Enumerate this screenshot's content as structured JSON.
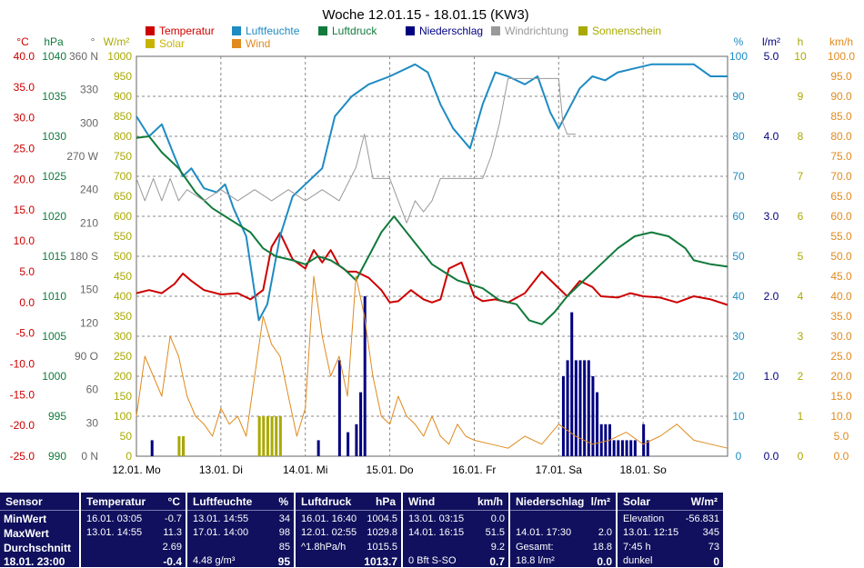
{
  "chart_data": {
    "type": "line",
    "title": "Woche 12.01.15 - 18.01.15 (KW3)",
    "legend": [
      {
        "label": "Temperatur",
        "color": "#cc0000"
      },
      {
        "label": "Luftfeuchte",
        "color": "#1e8bc3"
      },
      {
        "label": "Luftdruck",
        "color": "#117a3c"
      },
      {
        "label": "Niederschlag",
        "color": "#000080"
      },
      {
        "label": "Windrichtung",
        "color": "#999999"
      },
      {
        "label": "Sonnenschein",
        "color": "#a9a900"
      },
      {
        "label": "Solar",
        "color": "#c8b400"
      },
      {
        "label": "Wind",
        "color": "#e08a1e"
      }
    ],
    "x_labels": [
      "12.01. Mo",
      "13.01. Di",
      "14.01. Mi",
      "15.01. Do",
      "16.01. Fr",
      "17.01. Sa",
      "18.01. So"
    ],
    "axes": {
      "temp": {
        "unit": "°C",
        "color": "#cc0000",
        "ticks": [
          "40.0",
          "35.0",
          "30.0",
          "25.0",
          "20.0",
          "15.0",
          "10.0",
          "5.0",
          "0.0",
          "-5.0",
          "-10.0",
          "-15.0",
          "-20.0",
          "-25.0"
        ],
        "ylim": [
          -25,
          40
        ]
      },
      "pressure": {
        "unit": "hPa",
        "color": "#117a3c",
        "ticks": [
          "1040",
          "1035",
          "1030",
          "1025",
          "1020",
          "1015",
          "1010",
          "1005",
          "1000",
          "995",
          "990"
        ],
        "ylim": [
          990,
          1040
        ]
      },
      "direction": {
        "unit": "°",
        "color": "#666666",
        "ticks": [
          "360 N",
          "330",
          "300",
          "270 W",
          "240",
          "210",
          "180 S",
          "150",
          "120",
          "90 O",
          "60",
          "30",
          "0 N"
        ],
        "ylim": [
          0,
          360
        ]
      },
      "solar": {
        "unit": "W/m²",
        "color": "#a9a900",
        "ticks": [
          "1000",
          "950",
          "900",
          "850",
          "800",
          "750",
          "700",
          "650",
          "600",
          "550",
          "500",
          "450",
          "400",
          "350",
          "300",
          "250",
          "200",
          "150",
          "100",
          "50",
          "0"
        ],
        "ylim": [
          0,
          1000
        ]
      },
      "humidity": {
        "unit": "%",
        "color": "#1e8bc3",
        "ticks": [
          "100",
          "90",
          "80",
          "70",
          "60",
          "50",
          "40",
          "30",
          "20",
          "10",
          "0"
        ],
        "ylim": [
          0,
          100
        ]
      },
      "rain": {
        "unit": "l/m²",
        "color": "#000080",
        "ticks": [
          "5.0",
          "4.0",
          "3.0",
          "2.0",
          "1.0",
          "0.0"
        ],
        "ylim": [
          0,
          5
        ]
      },
      "sunhours": {
        "unit": "h",
        "color": "#a9a900",
        "ticks": [
          "10",
          "9",
          "8",
          "7",
          "6",
          "5",
          "4",
          "3",
          "2",
          "1",
          "0"
        ],
        "ylim": [
          0,
          10
        ]
      },
      "wind": {
        "unit": "km/h",
        "color": "#e08a1e",
        "ticks": [
          "100.0",
          "95.0",
          "90.0",
          "85.0",
          "80.0",
          "75.0",
          "70.0",
          "65.0",
          "60.0",
          "55.0",
          "50.0",
          "45.0",
          "40.0",
          "35.0",
          "30.0",
          "25.0",
          "20.0",
          "15.0",
          "10.0",
          "5.0",
          "0.0"
        ],
        "ylim": [
          0,
          100
        ]
      }
    },
    "series": [
      {
        "name": "Temperatur",
        "color": "#cc0000",
        "axis": "temp",
        "x": [
          0,
          0.15,
          0.3,
          0.45,
          0.55,
          0.65,
          0.8,
          1.0,
          1.2,
          1.35,
          1.5,
          1.6,
          1.7,
          1.85,
          2.0,
          2.1,
          2.2,
          2.3,
          2.4,
          2.5,
          2.6,
          2.75,
          2.9,
          3.0,
          3.1,
          3.25,
          3.4,
          3.5,
          3.6,
          3.7,
          3.85,
          4.0,
          4.1,
          4.25,
          4.4,
          4.6,
          4.8,
          4.95,
          5.1,
          5.25,
          5.4,
          5.5,
          5.7,
          5.85,
          6.0,
          6.2,
          6.4,
          6.6,
          6.8,
          7.0
        ],
        "y": [
          1.5,
          2.0,
          1.5,
          3.0,
          4.7,
          3.5,
          2.0,
          1.3,
          1.5,
          0.5,
          2.0,
          9.0,
          11.3,
          7.0,
          5.5,
          8.5,
          6.5,
          8.5,
          6.0,
          5.0,
          5.0,
          4.0,
          2.0,
          0.0,
          0.2,
          2.0,
          0.5,
          0.0,
          0.5,
          5.5,
          6.5,
          1.0,
          0.2,
          0.5,
          0.0,
          1.5,
          5.0,
          3.0,
          1.0,
          3.5,
          2.5,
          1.0,
          0.8,
          1.5,
          1.0,
          0.8,
          0.0,
          1.0,
          0.5,
          -0.4
        ]
      },
      {
        "name": "Luftfeuchte",
        "color": "#1e8bc3",
        "axis": "humidity",
        "x": [
          0,
          0.15,
          0.3,
          0.45,
          0.55,
          0.65,
          0.8,
          0.95,
          1.05,
          1.15,
          1.3,
          1.45,
          1.55,
          1.7,
          1.85,
          2.0,
          2.1,
          2.2,
          2.35,
          2.55,
          2.75,
          3.0,
          3.3,
          3.45,
          3.6,
          3.75,
          3.95,
          4.1,
          4.25,
          4.4,
          4.6,
          4.75,
          4.9,
          5.0,
          5.15,
          5.25,
          5.4,
          5.55,
          5.7,
          5.9,
          6.1,
          6.3,
          6.6,
          6.8,
          7.0
        ],
        "y": [
          85,
          80,
          83,
          75,
          70,
          72,
          67,
          66,
          68,
          62,
          55,
          34,
          38,
          55,
          65,
          68,
          70,
          72,
          85,
          90,
          93,
          95,
          98,
          96,
          88,
          82,
          77,
          88,
          96,
          95,
          93,
          95,
          86,
          82,
          88,
          92,
          95,
          94,
          96,
          97,
          98,
          98,
          98,
          95,
          95
        ]
      },
      {
        "name": "Luftdruck",
        "color": "#117a3c",
        "axis": "pressure",
        "x": [
          0,
          0.15,
          0.3,
          0.5,
          0.7,
          0.9,
          1.05,
          1.2,
          1.35,
          1.5,
          1.65,
          1.85,
          2.0,
          2.15,
          2.3,
          2.45,
          2.6,
          2.75,
          2.9,
          3.05,
          3.2,
          3.35,
          3.5,
          3.65,
          3.8,
          3.95,
          4.1,
          4.3,
          4.5,
          4.65,
          4.8,
          4.95,
          5.1,
          5.3,
          5.5,
          5.7,
          5.9,
          6.1,
          6.3,
          6.5,
          6.6,
          6.8,
          7.0
        ],
        "y": [
          1029.8,
          1030,
          1028,
          1026,
          1023,
          1021,
          1020,
          1019,
          1018,
          1016,
          1015,
          1014.5,
          1014,
          1015,
          1014.5,
          1013.5,
          1012,
          1015,
          1018,
          1020,
          1018,
          1016,
          1014,
          1013,
          1012,
          1011.5,
          1011,
          1009.5,
          1009,
          1007,
          1006.5,
          1008,
          1010,
          1012,
          1014,
          1016,
          1017.5,
          1018,
          1017.5,
          1016,
          1014.5,
          1014,
          1013.7
        ]
      },
      {
        "name": "Windrichtung",
        "color": "#999999",
        "axis": "direction",
        "x": [
          0,
          0.1,
          0.2,
          0.3,
          0.4,
          0.5,
          0.6,
          0.8,
          1.0,
          1.2,
          1.4,
          1.6,
          1.8,
          2.0,
          2.2,
          2.4,
          2.6,
          2.7,
          2.8,
          2.9,
          3.0,
          3.1,
          3.2,
          3.3,
          3.4,
          3.5,
          3.6,
          3.7,
          3.8,
          3.9,
          4.0,
          4.1,
          4.2,
          4.3,
          4.4,
          4.5,
          4.6,
          4.7,
          4.8,
          4.9,
          5.0,
          5.05,
          5.1,
          5.2
        ],
        "y": [
          250,
          230,
          250,
          230,
          250,
          230,
          240,
          230,
          240,
          230,
          240,
          230,
          240,
          230,
          240,
          230,
          260,
          290,
          250,
          250,
          250,
          230,
          210,
          230,
          220,
          230,
          250,
          250,
          250,
          250,
          250,
          250,
          270,
          300,
          340,
          340,
          340,
          340,
          340,
          340,
          340,
          300,
          290,
          290
        ]
      },
      {
        "name": "Wind",
        "color": "#e08a1e",
        "axis": "wind",
        "x": [
          0,
          0.1,
          0.2,
          0.3,
          0.4,
          0.5,
          0.6,
          0.7,
          0.8,
          0.9,
          1.0,
          1.1,
          1.2,
          1.3,
          1.4,
          1.5,
          1.6,
          1.7,
          1.8,
          1.9,
          2.0,
          2.1,
          2.2,
          2.3,
          2.4,
          2.5,
          2.6,
          2.7,
          2.8,
          2.9,
          3.0,
          3.1,
          3.2,
          3.3,
          3.4,
          3.5,
          3.6,
          3.7,
          3.8,
          3.9,
          4.0,
          4.2,
          4.4,
          4.6,
          4.8,
          5.0,
          5.2,
          5.4,
          5.6,
          5.8,
          6.0,
          6.2,
          6.4,
          6.6,
          6.8,
          7.0
        ],
        "y": [
          10,
          25,
          20,
          15,
          30,
          25,
          15,
          10,
          8,
          5,
          12,
          8,
          10,
          5,
          20,
          35,
          28,
          25,
          15,
          5,
          12,
          45,
          30,
          20,
          25,
          15,
          45,
          35,
          20,
          10,
          8,
          15,
          10,
          8,
          5,
          10,
          5,
          3,
          8,
          5,
          4,
          3,
          2,
          5,
          3,
          8,
          5,
          3,
          4,
          6,
          3,
          5,
          8,
          4,
          3,
          2
        ]
      }
    ],
    "bars": [
      {
        "name": "Niederschlag",
        "color": "#000080",
        "axis": "rain",
        "x": [
          0.18,
          0.55,
          2.15,
          2.4,
          2.5,
          2.6,
          2.65,
          2.7,
          5.05,
          5.1,
          5.15,
          5.2,
          5.25,
          5.3,
          5.35,
          5.4,
          5.45,
          5.5,
          5.55,
          5.6,
          5.65,
          5.7,
          5.75,
          5.8,
          5.85,
          5.9,
          6.0,
          6.05
        ],
        "y": [
          0.2,
          0.2,
          0.2,
          1.2,
          0.3,
          0.4,
          0.8,
          2.0,
          1.0,
          1.2,
          1.8,
          1.2,
          1.2,
          1.2,
          1.2,
          1.0,
          0.8,
          0.4,
          0.4,
          0.4,
          0.2,
          0.2,
          0.2,
          0.2,
          0.2,
          0.2,
          0.4,
          0.2
        ]
      },
      {
        "name": "Sonnenschein",
        "color": "#a9a900",
        "axis": "sunhours",
        "x": [
          0.5,
          0.55,
          1.45,
          1.5,
          1.55,
          1.6,
          1.65,
          1.7
        ],
        "y": [
          0.5,
          0.5,
          1.0,
          1.0,
          1.0,
          1.0,
          1.0,
          1.0
        ]
      }
    ]
  },
  "table": {
    "sensor_block": {
      "header": "Sensor",
      "rows": [
        "MinWert",
        "MaxWert",
        "Durchschnitt"
      ],
      "footer": "18.01. 23:00"
    },
    "temperatur": {
      "header": "Temperatur",
      "unit": "°C",
      "rows": [
        [
          "16.01. 03:05",
          "-0.7"
        ],
        [
          "13.01. 14:55",
          "11.3"
        ],
        [
          "",
          "2.69"
        ]
      ],
      "footer": [
        "",
        "-0.4"
      ]
    },
    "luftfeuchte": {
      "header": "Luftfeuchte",
      "unit": "%",
      "rows": [
        [
          "13.01. 14:55",
          "34"
        ],
        [
          "17.01. 14:00",
          "98"
        ],
        [
          "",
          "85"
        ]
      ],
      "footer": [
        "4.48 g/m³",
        "95"
      ]
    },
    "luftdruck": {
      "header": "Luftdruck",
      "unit": "hPa",
      "rows": [
        [
          "16.01. 16:40",
          "1004.5"
        ],
        [
          "12.01. 02:55",
          "1029.8"
        ],
        [
          "^1.8hPa/h",
          "1015.5"
        ]
      ],
      "footer": [
        "",
        "1013.7"
      ]
    },
    "wind": {
      "header": "Wind",
      "unit": "km/h",
      "rows": [
        [
          "13.01. 03:15",
          "0.0"
        ],
        [
          "14.01. 16:15",
          "51.5"
        ],
        [
          "",
          "9.2"
        ]
      ],
      "footer": [
        "0 Bft S-SO",
        "0.7"
      ]
    },
    "niederschlag": {
      "header": "Niederschlag",
      "unit": "l/m²",
      "rows": [
        [
          "",
          ""
        ],
        [
          "14.01. 17:30",
          "2.0"
        ],
        [
          "Gesamt:",
          "18.8"
        ]
      ],
      "footer": [
        "18.8 l/m²",
        "0.0"
      ]
    },
    "solar": {
      "header": "Solar",
      "unit": "W/m²",
      "rows": [
        [
          "Elevation",
          "-56.831"
        ],
        [
          "13.01. 12:15",
          "345"
        ],
        [
          "7:45 h",
          "73"
        ]
      ],
      "footer": [
        "dunkel",
        "0"
      ]
    }
  }
}
